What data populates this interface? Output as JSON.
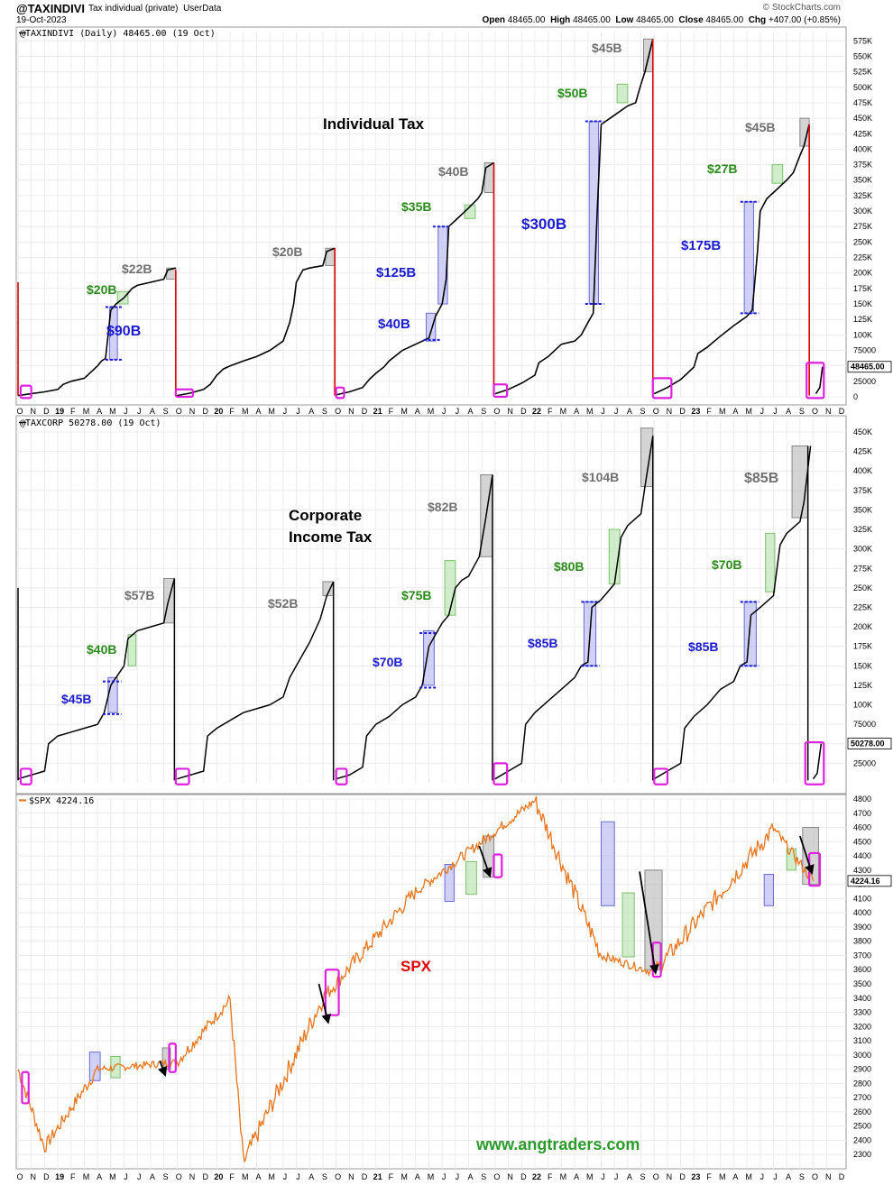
{
  "header": {
    "symbol": "@TAXINDIVI",
    "subtitle": "Tax individual (private)",
    "userdata": "UserData",
    "date": "19-Oct-2023",
    "brand": "© StockCharts.com",
    "open_label": "Open",
    "open": "48465.00",
    "high_label": "High",
    "high": "48465.00",
    "low_label": "Low",
    "low": "48465.00",
    "close_label": "Close",
    "close": "48465.00",
    "chg_label": "Chg",
    "chg": "+407.00 (+0.85%)"
  },
  "x_axis": {
    "ticks": [
      "O",
      "N",
      "D",
      "19",
      "F",
      "M",
      "A",
      "M",
      "J",
      "J",
      "A",
      "S",
      "O",
      "N",
      "D",
      "20",
      "F",
      "M",
      "A",
      "M",
      "J",
      "J",
      "A",
      "S",
      "O",
      "N",
      "D",
      "21",
      "F",
      "M",
      "A",
      "M",
      "J",
      "J",
      "A",
      "S",
      "O",
      "N",
      "D",
      "22",
      "F",
      "M",
      "A",
      "M",
      "J",
      "J",
      "A",
      "S",
      "O",
      "N",
      "D",
      "23",
      "F",
      "M",
      "A",
      "M",
      "J",
      "J",
      "A",
      "S",
      "O",
      "N",
      "D"
    ],
    "bold": [
      "19",
      "20",
      "21",
      "22",
      "23"
    ]
  },
  "chart_data": [
    {
      "type": "line",
      "legend": "@TAXINDIVI (Daily) 48465.00 (19 Oct)",
      "title": "Individual Tax",
      "ylim": [
        0,
        590000
      ],
      "ytick_labels": [
        "575K",
        "550K",
        "525K",
        "500K",
        "475K",
        "450K",
        "425K",
        "400K",
        "375K",
        "350K",
        "325K",
        "300K",
        "275K",
        "250K",
        "225K",
        "200K",
        "175K",
        "150K",
        "125K",
        "100K",
        "75000",
        "50000",
        "25000",
        "0"
      ],
      "last_value_label": "48465.00",
      "annotations": [
        {
          "text": "$22B",
          "color": "gray"
        },
        {
          "text": "$20B",
          "color": "green"
        },
        {
          "text": "$90B",
          "color": "blue"
        },
        {
          "text": "$20B",
          "color": "gray"
        },
        {
          "text": "$40B",
          "color": "gray"
        },
        {
          "text": "$35B",
          "color": "green"
        },
        {
          "text": "$125B",
          "color": "blue"
        },
        {
          "text": "$40B",
          "color": "blue"
        },
        {
          "text": "$45B",
          "color": "gray"
        },
        {
          "text": "$50B",
          "color": "green"
        },
        {
          "text": "$300B",
          "color": "blue"
        },
        {
          "text": "$45B",
          "color": "gray"
        },
        {
          "text": "$27B",
          "color": "green"
        },
        {
          "text": "$175B",
          "color": "blue"
        }
      ],
      "line_color": "#000000",
      "reset_color": "#cc0000"
    },
    {
      "type": "line",
      "legend": "@TAXCORP 50278.00 (19 Oct)",
      "title_line1": "Corporate",
      "title_line2": "Income Tax",
      "ylim": [
        0,
        465000
      ],
      "ytick_labels": [
        "450K",
        "425K",
        "400K",
        "375K",
        "350K",
        "325K",
        "300K",
        "275K",
        "250K",
        "225K",
        "200K",
        "175K",
        "150K",
        "125K",
        "100K",
        "75000",
        "50000",
        "25000"
      ],
      "last_value_label": "50278.00",
      "annotations": [
        {
          "text": "$57B",
          "color": "gray"
        },
        {
          "text": "$40B",
          "color": "green"
        },
        {
          "text": "$45B",
          "color": "blue"
        },
        {
          "text": "$52B",
          "color": "gray"
        },
        {
          "text": "$82B",
          "color": "gray"
        },
        {
          "text": "$75B",
          "color": "green"
        },
        {
          "text": "$70B",
          "color": "blue"
        },
        {
          "text": "$104B",
          "color": "gray"
        },
        {
          "text": "$80B",
          "color": "green"
        },
        {
          "text": "$85B",
          "color": "blue"
        },
        {
          "text": "$85B",
          "color": "gray"
        },
        {
          "text": "$70B",
          "color": "green"
        },
        {
          "text": "$85B",
          "color": "blue"
        }
      ],
      "line_color": "#000000"
    },
    {
      "type": "line",
      "legend": "$SPX 4224.16",
      "title": "SPX",
      "ylim": [
        2200,
        4800
      ],
      "ytick_labels": [
        "4800",
        "4700",
        "4600",
        "4500",
        "4400",
        "4300",
        "4200",
        "4100",
        "4000",
        "3900",
        "3800",
        "3700",
        "3600",
        "3500",
        "3400",
        "3300",
        "3200",
        "3100",
        "3000",
        "2900",
        "2800",
        "2700",
        "2600",
        "2500",
        "2400",
        "2300"
      ],
      "last_value_label": "4224.16",
      "key_points": [
        {
          "x": "2018-10",
          "y": 2900
        },
        {
          "x": "2018-12",
          "y": 2350
        },
        {
          "x": "2019-04",
          "y": 2900
        },
        {
          "x": "2019-10",
          "y": 2950
        },
        {
          "x": "2020-02",
          "y": 3390
        },
        {
          "x": "2020-03",
          "y": 2240
        },
        {
          "x": "2020-09",
          "y": 3400
        },
        {
          "x": "2021-04",
          "y": 4150
        },
        {
          "x": "2021-09",
          "y": 4500
        },
        {
          "x": "2022-01",
          "y": 4790
        },
        {
          "x": "2022-06",
          "y": 3700
        },
        {
          "x": "2022-10",
          "y": 3580
        },
        {
          "x": "2023-07",
          "y": 4590
        },
        {
          "x": "2023-10",
          "y": 4224
        }
      ],
      "line_color": "#e8741c",
      "footer": "www.angtraders.com"
    }
  ]
}
